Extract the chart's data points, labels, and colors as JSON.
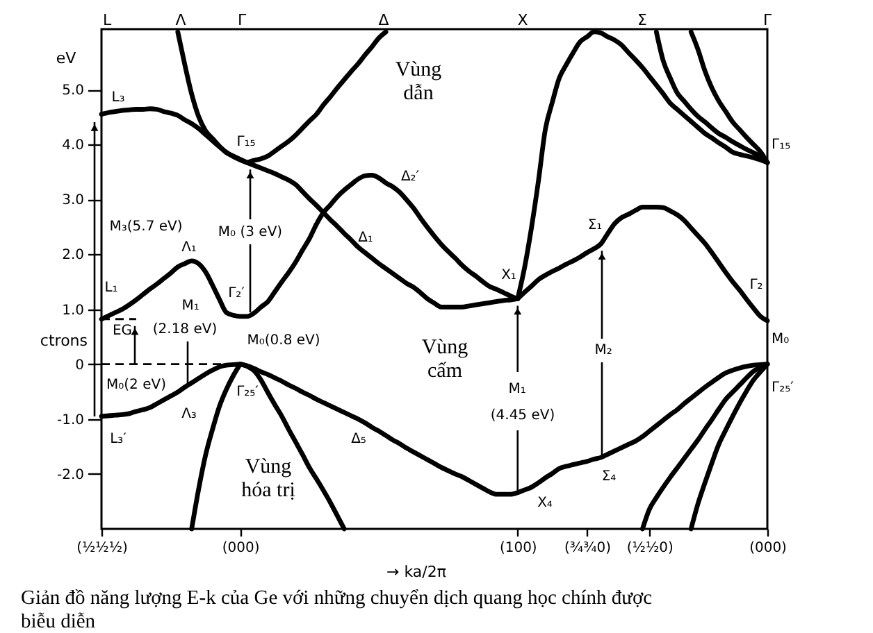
{
  "chart_data": {
    "type": "line",
    "xlabel": "→ ka/2π",
    "ylabel": "eV",
    "categories": [
      "(½½½)",
      null,
      null,
      null,
      null,
      null,
      null,
      null,
      null,
      null,
      null,
      null,
      null,
      null,
      null,
      null,
      null,
      null,
      null,
      null,
      "(000)",
      null,
      null,
      null,
      null,
      null,
      null,
      null,
      null,
      null,
      null,
      null,
      null,
      null,
      null,
      null,
      null,
      null,
      null,
      null,
      null,
      null,
      null,
      null,
      null,
      null,
      null,
      null,
      null,
      null,
      null,
      null,
      null,
      null,
      null,
      null,
      null,
      null,
      null,
      null,
      "(100)",
      null,
      null,
      null,
      null,
      null,
      null,
      null,
      null,
      null,
      "(¾¾0)",
      null,
      null,
      null,
      null,
      null,
      null,
      null,
      null,
      "(½½0)",
      null,
      null,
      null,
      null,
      null,
      null,
      null,
      null,
      null,
      null,
      null,
      null,
      null,
      null,
      null,
      null,
      "(000)"
    ],
    "ylim": [
      -3.0,
      6.1
    ],
    "yticks": [
      {
        "value": -2,
        "label": "-2.0"
      },
      {
        "value": -1,
        "label": "-1.0"
      },
      0,
      {
        "value": 1,
        "label": "1.0"
      },
      {
        "value": 2,
        "label": "2.0"
      },
      {
        "value": 3,
        "label": "3.0"
      },
      {
        "value": 4,
        "label": "4.0"
      },
      {
        "value": 5,
        "label": "5.0"
      }
    ],
    "series": [
      {
        "color": "#000000",
        "values": [
          4.55,
          4.58,
          4.6,
          4.62,
          4.63,
          4.64,
          4.64,
          4.65,
          4.64,
          4.6,
          4.57,
          4.53,
          4.45,
          4.38,
          4.29,
          4.18,
          4.07,
          3.96,
          3.86,
          3.78,
          3.72,
          3.67,
          3.62,
          3.57,
          3.52,
          3.47,
          3.41,
          3.35,
          3.27,
          3.14,
          3.01,
          2.89,
          2.76,
          2.63,
          2.51,
          2.38,
          2.26,
          2.13,
          2.03,
          1.93,
          1.83,
          1.74,
          1.65,
          1.56,
          1.47,
          1.4,
          1.3,
          1.19,
          1.11,
          1.04,
          1.04,
          1.04,
          1.04,
          1.06,
          1.08,
          1.1,
          1.12,
          1.14,
          1.16,
          1.17,
          1.19,
          null,
          null,
          null,
          null,
          null,
          null,
          null,
          null,
          null,
          null,
          null,
          null,
          null,
          null,
          null,
          null,
          null,
          null,
          null,
          null,
          null,
          null,
          null,
          null,
          null,
          null,
          null,
          null,
          null,
          null,
          null,
          null,
          null,
          null,
          null,
          null
        ]
      },
      {
        "color": "#000000",
        "values": [
          null,
          null,
          null,
          null,
          null,
          null,
          null,
          null,
          null,
          null,
          null,
          6.05,
          5.46,
          4.92,
          4.51,
          4.25,
          4.11,
          3.97,
          3.85,
          3.79,
          3.73,
          3.67,
          null,
          null,
          null,
          null,
          null,
          null,
          null,
          null,
          null,
          null,
          null,
          null,
          null,
          null,
          null,
          null,
          null,
          null,
          null,
          null,
          null,
          null,
          null,
          null,
          null,
          null,
          null,
          null,
          null,
          null,
          null,
          null,
          null,
          null,
          null,
          null,
          null,
          null,
          null,
          null,
          null,
          null,
          null,
          null,
          null,
          null,
          null,
          null,
          null,
          null,
          null,
          null,
          null,
          null,
          null,
          null,
          null,
          null,
          null,
          null,
          null,
          null,
          null,
          null,
          null,
          null,
          null,
          null,
          null,
          null,
          null,
          null,
          null,
          null,
          null
        ]
      },
      {
        "color": "#000000",
        "values": [
          null,
          null,
          null,
          null,
          null,
          null,
          null,
          null,
          null,
          null,
          null,
          null,
          null,
          null,
          null,
          null,
          null,
          null,
          null,
          null,
          null,
          3.67,
          3.71,
          3.74,
          3.79,
          3.88,
          3.97,
          4.06,
          4.17,
          4.3,
          4.43,
          4.55,
          4.72,
          4.87,
          5.03,
          5.18,
          5.33,
          5.47,
          5.63,
          5.78,
          5.94,
          6.05,
          null,
          null,
          null,
          null,
          null,
          null,
          null,
          null,
          null,
          null,
          null,
          null,
          null,
          null,
          null,
          null,
          null,
          null,
          null,
          null,
          null,
          null,
          null,
          null,
          null,
          null,
          null,
          null,
          null,
          null,
          null,
          null,
          null,
          null,
          null,
          null,
          null,
          null,
          null,
          null,
          null,
          null,
          null,
          null,
          null,
          null,
          null,
          null,
          null,
          null,
          null,
          null,
          null,
          null,
          null
        ]
      },
      {
        "color": "#000000",
        "values": [
          0.82,
          0.88,
          0.94,
          1.0,
          1.08,
          1.17,
          1.27,
          1.37,
          1.46,
          1.56,
          1.66,
          1.77,
          1.83,
          1.88,
          1.83,
          1.68,
          1.44,
          1.18,
          0.94,
          0.89,
          0.87,
          0.87,
          0.93,
          1.04,
          1.14,
          1.32,
          1.5,
          1.67,
          1.86,
          2.08,
          2.29,
          2.55,
          2.76,
          2.9,
          3.05,
          3.17,
          3.27,
          3.37,
          3.43,
          3.44,
          3.39,
          3.3,
          3.23,
          3.13,
          2.99,
          2.84,
          2.66,
          2.49,
          2.33,
          2.18,
          2.05,
          1.93,
          1.8,
          1.69,
          1.6,
          1.5,
          1.41,
          1.36,
          1.3,
          1.24,
          1.19,
          null,
          null,
          null,
          null,
          null,
          null,
          null,
          null,
          null,
          null,
          null,
          null,
          null,
          null,
          null,
          null,
          null,
          null,
          null,
          null,
          null,
          null,
          null,
          null,
          null,
          null,
          null,
          null,
          null,
          null,
          null,
          null,
          null,
          null,
          null,
          null
        ]
      },
      {
        "color": "#000000",
        "values": [
          null,
          null,
          null,
          null,
          null,
          null,
          null,
          null,
          null,
          null,
          null,
          null,
          null,
          null,
          null,
          null,
          null,
          null,
          null,
          null,
          null,
          null,
          null,
          null,
          null,
          null,
          null,
          null,
          null,
          null,
          null,
          null,
          null,
          null,
          null,
          null,
          null,
          null,
          null,
          null,
          null,
          null,
          null,
          null,
          null,
          null,
          null,
          null,
          null,
          null,
          null,
          null,
          null,
          null,
          null,
          null,
          null,
          null,
          null,
          null,
          1.19,
          1.31,
          1.42,
          1.54,
          1.62,
          1.69,
          1.75,
          1.82,
          1.88,
          1.95,
          2.03,
          2.1,
          2.19,
          2.38,
          2.56,
          2.67,
          2.73,
          2.8,
          2.86,
          2.86,
          2.86,
          2.85,
          2.79,
          2.72,
          2.62,
          2.48,
          2.34,
          2.2,
          2.03,
          1.85,
          1.67,
          1.5,
          1.35,
          1.18,
          1.02,
          0.87,
          0.79
        ]
      },
      {
        "color": "#000000",
        "values": [
          null,
          null,
          null,
          null,
          null,
          null,
          null,
          null,
          null,
          null,
          null,
          null,
          null,
          null,
          null,
          null,
          null,
          null,
          null,
          null,
          null,
          null,
          null,
          null,
          null,
          null,
          null,
          null,
          null,
          null,
          null,
          null,
          null,
          null,
          null,
          null,
          null,
          null,
          null,
          null,
          null,
          null,
          null,
          null,
          null,
          null,
          null,
          null,
          null,
          null,
          null,
          null,
          null,
          null,
          null,
          null,
          null,
          null,
          null,
          null,
          1.19,
          1.76,
          2.49,
          3.34,
          4.28,
          4.77,
          5.21,
          5.45,
          5.67,
          5.87,
          5.96,
          6.05,
          6.03,
          5.96,
          5.9,
          5.81,
          5.67,
          5.54,
          5.4,
          5.24,
          5.08,
          4.92,
          4.75,
          4.64,
          4.53,
          4.42,
          4.31,
          4.2,
          4.12,
          4.03,
          3.95,
          3.86,
          3.82,
          3.79,
          3.76,
          3.72,
          3.67
        ]
      },
      {
        "color": "#000000",
        "values": [
          null,
          null,
          null,
          null,
          null,
          null,
          null,
          null,
          null,
          null,
          null,
          null,
          null,
          null,
          null,
          null,
          null,
          null,
          null,
          null,
          null,
          null,
          null,
          null,
          null,
          null,
          null,
          null,
          null,
          null,
          null,
          null,
          null,
          null,
          null,
          null,
          null,
          null,
          null,
          null,
          null,
          null,
          null,
          null,
          null,
          null,
          null,
          null,
          null,
          null,
          null,
          null,
          null,
          null,
          null,
          null,
          null,
          null,
          null,
          null,
          null,
          null,
          null,
          null,
          null,
          null,
          null,
          null,
          null,
          null,
          null,
          null,
          null,
          null,
          null,
          null,
          null,
          null,
          null,
          null,
          6.05,
          5.52,
          5.21,
          4.94,
          4.79,
          4.64,
          4.51,
          4.41,
          4.3,
          4.2,
          4.13,
          4.05,
          3.98,
          3.91,
          3.85,
          3.78,
          3.67
        ]
      },
      {
        "color": "#000000",
        "values": [
          null,
          null,
          null,
          null,
          null,
          null,
          null,
          null,
          null,
          null,
          null,
          null,
          null,
          null,
          null,
          null,
          null,
          null,
          null,
          null,
          null,
          null,
          null,
          null,
          null,
          null,
          null,
          null,
          null,
          null,
          null,
          null,
          null,
          null,
          null,
          null,
          null,
          null,
          null,
          null,
          null,
          null,
          null,
          null,
          null,
          null,
          null,
          null,
          null,
          null,
          null,
          null,
          null,
          null,
          null,
          null,
          null,
          null,
          null,
          null,
          null,
          null,
          null,
          null,
          null,
          null,
          null,
          null,
          null,
          null,
          null,
          null,
          null,
          null,
          null,
          null,
          null,
          null,
          null,
          null,
          null,
          null,
          null,
          null,
          null,
          6.05,
          5.73,
          5.34,
          5.03,
          4.79,
          4.6,
          4.41,
          4.27,
          4.13,
          4.0,
          3.87,
          3.67
        ]
      },
      {
        "color": "#000000",
        "values": [
          -0.95,
          -0.94,
          -0.93,
          -0.92,
          -0.9,
          -0.86,
          -0.83,
          -0.79,
          -0.72,
          -0.65,
          -0.58,
          -0.51,
          -0.42,
          -0.34,
          -0.26,
          -0.18,
          -0.11,
          -0.05,
          -0.02,
          -0.01,
          0,
          -0.03,
          -0.08,
          -0.14,
          -0.19,
          -0.25,
          -0.31,
          -0.38,
          -0.44,
          -0.51,
          -0.57,
          -0.64,
          -0.7,
          -0.76,
          -0.82,
          -0.88,
          -0.94,
          -1.0,
          -1.07,
          -1.15,
          -1.22,
          -1.3,
          -1.38,
          -1.45,
          -1.53,
          -1.6,
          -1.67,
          -1.74,
          -1.81,
          -1.88,
          -1.94,
          -2.0,
          -2.05,
          -2.12,
          -2.19,
          -2.26,
          -2.33,
          -2.37,
          -2.37,
          -2.37,
          -2.34,
          -2.29,
          -2.24,
          -2.16,
          -2.07,
          -1.99,
          -1.9,
          -1.86,
          -1.83,
          -1.8,
          -1.77,
          -1.73,
          -1.7,
          -1.64,
          -1.58,
          -1.52,
          -1.46,
          -1.4,
          -1.32,
          -1.22,
          -1.12,
          -1.02,
          -0.92,
          -0.83,
          -0.72,
          -0.62,
          -0.52,
          -0.42,
          -0.33,
          -0.24,
          -0.16,
          -0.11,
          -0.07,
          -0.04,
          -0.02,
          -0.01,
          0
        ]
      },
      {
        "color": "#000000",
        "values": [
          null,
          null,
          null,
          null,
          null,
          null,
          null,
          null,
          null,
          null,
          null,
          null,
          null,
          -3.0,
          -2.28,
          -1.66,
          -1.19,
          -0.77,
          -0.46,
          -0.21,
          0,
          null,
          null,
          null,
          null,
          null,
          null,
          null,
          null,
          null,
          null,
          null,
          null,
          null,
          null,
          null,
          null,
          null,
          null,
          null,
          null,
          null,
          null,
          null,
          null,
          null,
          null,
          null,
          null,
          null,
          null,
          null,
          null,
          null,
          null,
          null,
          null,
          null,
          null,
          null,
          null,
          null,
          null,
          null,
          null,
          null,
          null,
          null,
          null,
          null,
          null,
          null,
          null,
          null,
          null,
          null,
          null,
          null,
          null,
          null,
          null,
          null,
          null,
          null,
          null,
          null,
          null,
          null,
          null,
          null,
          null,
          null,
          null,
          null,
          null,
          null,
          null
        ]
      },
      {
        "color": "#000000",
        "values": [
          null,
          null,
          null,
          null,
          null,
          null,
          null,
          null,
          null,
          null,
          null,
          null,
          null,
          null,
          null,
          null,
          null,
          null,
          null,
          null,
          0,
          -0.04,
          -0.12,
          -0.29,
          -0.52,
          -0.74,
          -0.95,
          -1.19,
          -1.42,
          -1.65,
          -1.89,
          -2.09,
          -2.3,
          -2.52,
          -2.76,
          -3.0,
          null,
          null,
          null,
          null,
          null,
          null,
          null,
          null,
          null,
          null,
          null,
          null,
          null,
          null,
          null,
          null,
          null,
          null,
          null,
          null,
          null,
          null,
          null,
          null,
          null,
          null,
          null,
          null,
          null,
          null,
          null,
          null,
          null,
          null,
          null,
          null,
          null,
          null,
          null,
          null,
          null,
          null,
          null,
          null,
          null,
          null,
          null,
          null,
          null,
          null,
          null,
          null,
          null,
          null,
          null,
          null,
          null,
          null,
          null,
          null,
          null
        ]
      },
      {
        "color": "#000000",
        "values": [
          null,
          null,
          null,
          null,
          null,
          null,
          null,
          null,
          null,
          null,
          null,
          null,
          null,
          null,
          null,
          null,
          null,
          null,
          null,
          null,
          null,
          null,
          null,
          null,
          null,
          null,
          null,
          null,
          null,
          null,
          null,
          null,
          null,
          null,
          null,
          null,
          null,
          null,
          null,
          null,
          null,
          null,
          null,
          null,
          null,
          null,
          null,
          null,
          null,
          null,
          null,
          null,
          null,
          null,
          null,
          null,
          null,
          null,
          null,
          null,
          null,
          null,
          null,
          null,
          null,
          null,
          null,
          null,
          null,
          null,
          null,
          null,
          null,
          null,
          null,
          null,
          null,
          null,
          -3.0,
          -2.64,
          -2.43,
          -2.24,
          -2.06,
          -1.89,
          -1.72,
          -1.55,
          -1.38,
          -1.19,
          -1.01,
          -0.82,
          -0.64,
          -0.51,
          -0.38,
          -0.25,
          -0.13,
          -0.06,
          0
        ]
      },
      {
        "color": "#000000",
        "values": [
          null,
          null,
          null,
          null,
          null,
          null,
          null,
          null,
          null,
          null,
          null,
          null,
          null,
          null,
          null,
          null,
          null,
          null,
          null,
          null,
          null,
          null,
          null,
          null,
          null,
          null,
          null,
          null,
          null,
          null,
          null,
          null,
          null,
          null,
          null,
          null,
          null,
          null,
          null,
          null,
          null,
          null,
          null,
          null,
          null,
          null,
          null,
          null,
          null,
          null,
          null,
          null,
          null,
          null,
          null,
          null,
          null,
          null,
          null,
          null,
          null,
          null,
          null,
          null,
          null,
          null,
          null,
          null,
          null,
          null,
          null,
          null,
          null,
          null,
          null,
          null,
          null,
          null,
          null,
          null,
          null,
          null,
          null,
          null,
          null,
          -3.0,
          -2.54,
          -2.16,
          -1.8,
          -1.46,
          -1.2,
          -0.95,
          -0.71,
          -0.49,
          -0.29,
          -0.14,
          0
        ]
      },
      {
        "color": "#000000",
        "line_style": "dashed",
        "values": [
          0,
          0,
          0,
          0,
          0,
          0,
          0,
          0,
          0,
          0,
          0,
          0,
          0,
          0,
          0,
          0,
          0,
          0,
          0,
          0,
          0,
          null,
          null,
          null,
          null,
          null,
          null,
          null,
          null,
          null,
          null,
          null,
          null,
          null,
          null,
          null,
          null,
          null,
          null,
          null,
          null,
          null,
          null,
          null,
          null,
          null,
          null,
          null,
          null,
          null,
          null,
          null,
          null,
          null,
          null,
          null,
          null,
          null,
          null,
          null,
          null,
          null,
          null,
          null,
          null,
          null,
          null,
          null,
          null,
          null,
          null,
          null,
          null,
          null,
          null,
          null,
          null,
          null,
          null,
          null,
          null,
          null,
          null,
          null,
          null,
          null,
          null,
          null,
          null,
          null,
          null,
          null,
          null,
          null,
          null,
          null,
          null
        ]
      },
      {
        "color": "#000000",
        "line_style": "dashed",
        "values": [
          0.82,
          0.82,
          0.82,
          0.82,
          0.82,
          0.82,
          null,
          null,
          null,
          null,
          null,
          null,
          null,
          null,
          null,
          null,
          null,
          null,
          null,
          null,
          null,
          null,
          null,
          null,
          null,
          null,
          null,
          null,
          null,
          null,
          null,
          null,
          null,
          null,
          null,
          null,
          null,
          null,
          null,
          null,
          null,
          null,
          null,
          null,
          null,
          null,
          null,
          null,
          null,
          null,
          null,
          null,
          null,
          null,
          null,
          null,
          null,
          null,
          null,
          null,
          null,
          null,
          null,
          null,
          null,
          null,
          null,
          null,
          null,
          null,
          null,
          null,
          null,
          null,
          null,
          null,
          null,
          null,
          null,
          null,
          null,
          null,
          null,
          null,
          null,
          null,
          null,
          null,
          null,
          null,
          null,
          null,
          null,
          null,
          null,
          null,
          null
        ]
      }
    ],
    "annotations": [
      "L",
      "Λ",
      "Γ",
      "Δ",
      "X",
      "Σ",
      "Γ",
      "L₃",
      "M₃(5.7 eV)",
      "Λ₁",
      "L₁",
      "M₁",
      "Γ₂′",
      {
        "text": "EG",
        "y": 0.82
      },
      {
        "text": "(2.18 eV)",
        "y": -0.42
      },
      "M₀(0.8 eV)",
      "M₀(2 eV)",
      "Γ₂₅′",
      "Λ₃",
      "L₃′",
      "Δ₅",
      "Γ₁₅",
      {
        "text": "M₀ (3 eV)",
        "y": 3.67
      },
      "Δ₂′",
      "Δ₁",
      "X₁",
      "Σ₁",
      "Γ₁₅",
      "Γ₂",
      "M₀",
      "Γ₂₅′",
      {
        "text": "M₂",
        "y": 2.19
      },
      {
        "text": "M₁",
        "x": "(100)",
        "y": 1.19
      },
      {
        "text": "(4.45 eV)",
        "x": "(100)",
        "y": -2.34
      },
      "X₄",
      "Σ₄",
      "Vùng dẫn",
      "Vùng cấm",
      "Vùng hóa trị",
      "ctrons",
      "Giản đồ năng lượng E-k của Ge với những chuyển dịch quang học chính được biễu diễn"
    ]
  }
}
